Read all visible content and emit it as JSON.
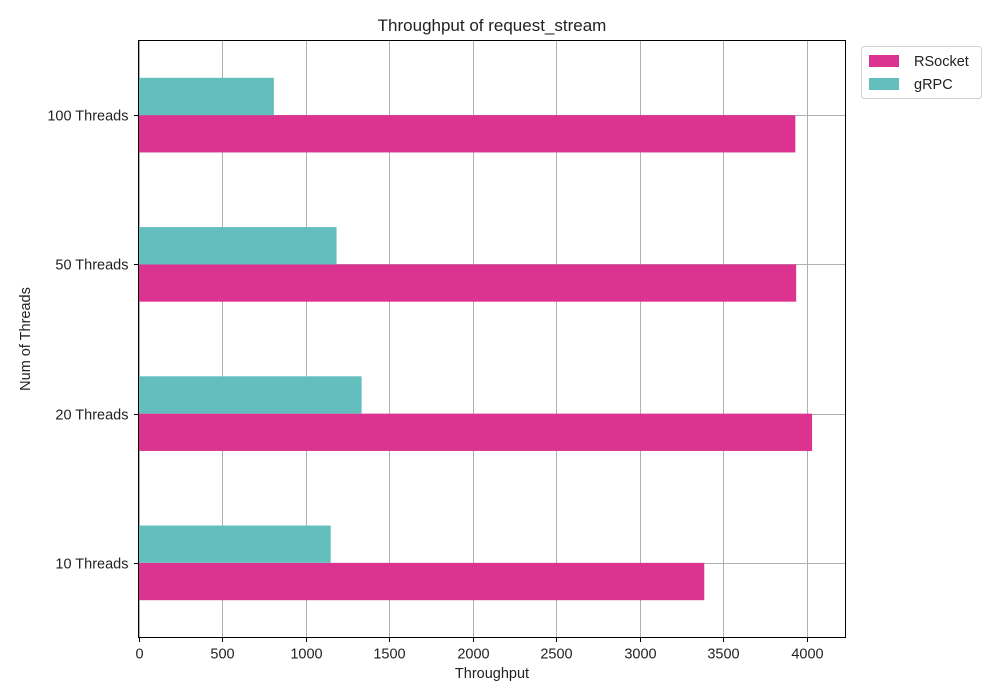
{
  "chart_data": {
    "type": "bar",
    "orientation": "horizontal",
    "title": "Throughput of request_stream",
    "xlabel": "Throughput",
    "ylabel": "Num of Threads",
    "categories": [
      "10 Threads",
      "20 Threads",
      "50 Threads",
      "100 Threads"
    ],
    "series": [
      {
        "name": "RSocket",
        "color": "#dc3390",
        "values": [
          3385,
          4030,
          3935,
          3930
        ]
      },
      {
        "name": "gRPC",
        "color": "#63bfbd",
        "values": [
          1150,
          1335,
          1185,
          810
        ]
      }
    ],
    "xlim": [
      0,
      4230
    ],
    "xticks": [
      0,
      500,
      1000,
      1500,
      2000,
      2500,
      3000,
      3500,
      4000
    ],
    "grid": true,
    "legend": "top-right, outside plot"
  }
}
